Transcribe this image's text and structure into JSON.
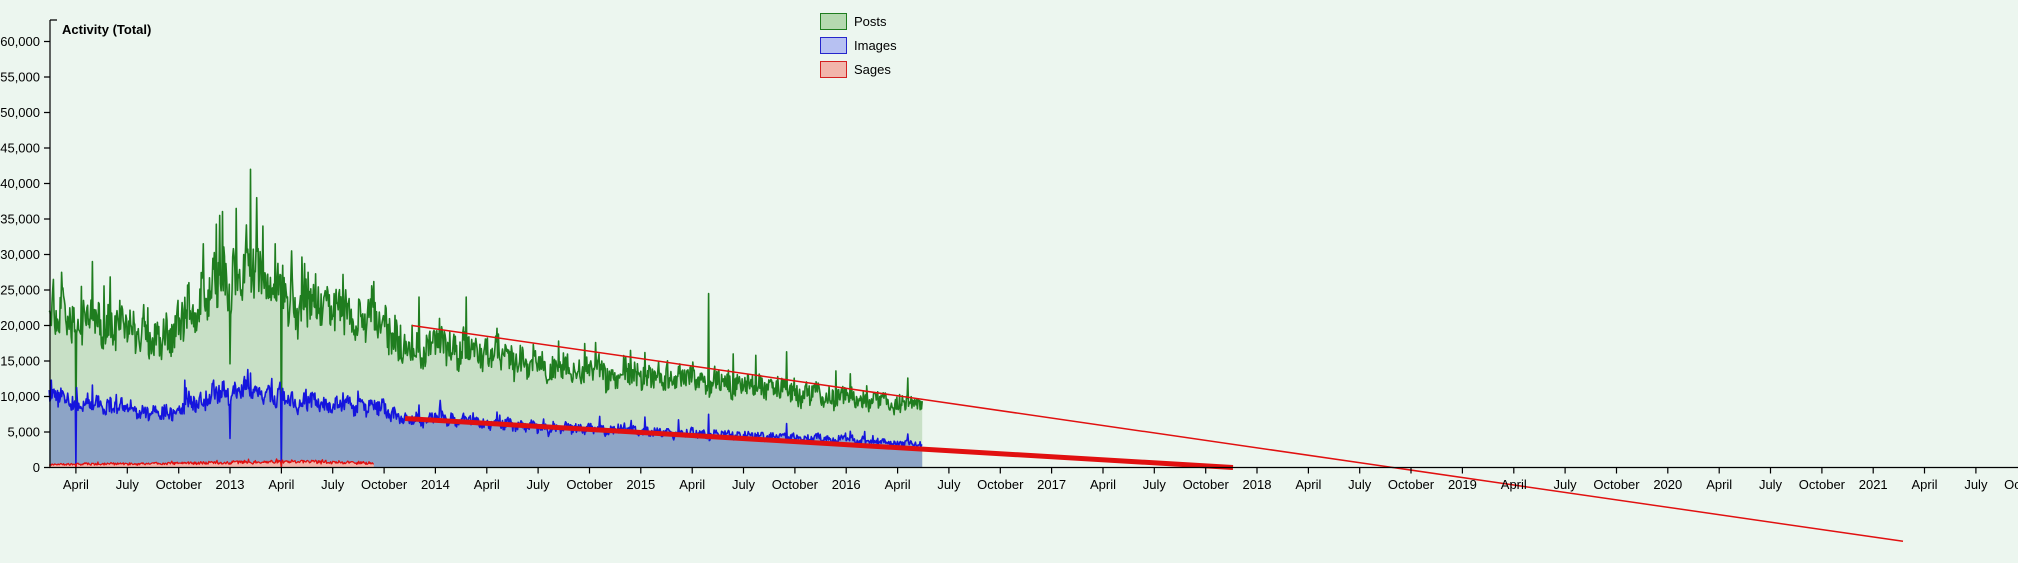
{
  "title": "Activity (Total)",
  "page_background": "#ecf6ef",
  "legend": [
    {
      "label": "Posts",
      "fill": "#b5d9b0",
      "border": "#1f7d1f"
    },
    {
      "label": "Images",
      "fill": "#b7c1f2",
      "border": "#2525cc"
    },
    {
      "label": "Sages",
      "fill": "#f2b5ab",
      "border": "#d42020"
    }
  ],
  "chart_data": {
    "type": "area",
    "title": "Activity (Total)",
    "xlabel": "",
    "ylabel": "",
    "grid": false,
    "legend_position": "top-center",
    "ylim": [
      0,
      60000
    ],
    "xlim_decimal_year": [
      2012.12,
      2021.83
    ],
    "axis_color": "#000000",
    "y_ticks": [
      {
        "v": 0,
        "label": "0"
      },
      {
        "v": 5000,
        "label": "5,000"
      },
      {
        "v": 10000,
        "label": "10,000"
      },
      {
        "v": 15000,
        "label": "15,000"
      },
      {
        "v": 20000,
        "label": "20,000"
      },
      {
        "v": 25000,
        "label": "25,000"
      },
      {
        "v": 30000,
        "label": "30,000"
      },
      {
        "v": 35000,
        "label": "35,000"
      },
      {
        "v": 40000,
        "label": "40,000"
      },
      {
        "v": 45000,
        "label": "45,000"
      },
      {
        "v": 50000,
        "label": "50,000"
      },
      {
        "v": 55000,
        "label": "55,000"
      },
      {
        "v": 60000,
        "label": "60,000"
      }
    ],
    "x_ticks": [
      {
        "t": 2012.25,
        "label": "April"
      },
      {
        "t": 2012.5,
        "label": "July"
      },
      {
        "t": 2012.75,
        "label": "October"
      },
      {
        "t": 2013.0,
        "label": "2013"
      },
      {
        "t": 2013.25,
        "label": "April"
      },
      {
        "t": 2013.5,
        "label": "July"
      },
      {
        "t": 2013.75,
        "label": "October"
      },
      {
        "t": 2014.0,
        "label": "2014"
      },
      {
        "t": 2014.25,
        "label": "April"
      },
      {
        "t": 2014.5,
        "label": "July"
      },
      {
        "t": 2014.75,
        "label": "October"
      },
      {
        "t": 2015.0,
        "label": "2015"
      },
      {
        "t": 2015.25,
        "label": "April"
      },
      {
        "t": 2015.5,
        "label": "July"
      },
      {
        "t": 2015.75,
        "label": "October"
      },
      {
        "t": 2016.0,
        "label": "2016"
      },
      {
        "t": 2016.25,
        "label": "April"
      },
      {
        "t": 2016.5,
        "label": "July"
      },
      {
        "t": 2016.75,
        "label": "October"
      },
      {
        "t": 2017.0,
        "label": "2017"
      },
      {
        "t": 2017.25,
        "label": "April"
      },
      {
        "t": 2017.5,
        "label": "July"
      },
      {
        "t": 2017.75,
        "label": "October"
      },
      {
        "t": 2018.0,
        "label": "2018"
      },
      {
        "t": 2018.25,
        "label": "April"
      },
      {
        "t": 2018.5,
        "label": "July"
      },
      {
        "t": 2018.75,
        "label": "October"
      },
      {
        "t": 2019.0,
        "label": "2019"
      },
      {
        "t": 2019.25,
        "label": "April"
      },
      {
        "t": 2019.5,
        "label": "July"
      },
      {
        "t": 2019.75,
        "label": "October"
      },
      {
        "t": 2020.0,
        "label": "2020"
      },
      {
        "t": 2020.25,
        "label": "April"
      },
      {
        "t": 2020.5,
        "label": "July"
      },
      {
        "t": 2020.75,
        "label": "October"
      },
      {
        "t": 2021.0,
        "label": "2021"
      },
      {
        "t": 2021.25,
        "label": "April"
      },
      {
        "t": 2021.5,
        "label": "July"
      },
      {
        "t": 2021.75,
        "label": "October"
      }
    ],
    "series": [
      {
        "name": "Posts",
        "line_color": "#1f7d1f",
        "fill_color": "#c8e0c6",
        "noise_rel": 0.14,
        "seed": 7,
        "range": [
          2012.12,
          2016.37
        ],
        "keypoints": [
          [
            2012.12,
            22000
          ],
          [
            2012.17,
            21000
          ],
          [
            2012.25,
            21000
          ],
          [
            2012.33,
            20800
          ],
          [
            2012.42,
            20300
          ],
          [
            2012.5,
            19600
          ],
          [
            2012.58,
            19000
          ],
          [
            2012.63,
            17200
          ],
          [
            2012.7,
            19000
          ],
          [
            2012.75,
            20000
          ],
          [
            2012.83,
            23000
          ],
          [
            2012.92,
            26000
          ],
          [
            2013.0,
            27000
          ],
          [
            2013.08,
            28000
          ],
          [
            2013.17,
            26500
          ],
          [
            2013.25,
            24000
          ],
          [
            2013.33,
            23200
          ],
          [
            2013.42,
            22800
          ],
          [
            2013.5,
            22300
          ],
          [
            2013.58,
            21800
          ],
          [
            2013.67,
            21300
          ],
          [
            2013.75,
            20500
          ],
          [
            2013.79,
            19500
          ],
          [
            2013.83,
            16500
          ],
          [
            2013.92,
            16800
          ],
          [
            2014.0,
            17300
          ],
          [
            2014.08,
            17000
          ],
          [
            2014.17,
            16500
          ],
          [
            2014.25,
            16000
          ],
          [
            2014.33,
            15500
          ],
          [
            2014.42,
            14800
          ],
          [
            2014.5,
            14200
          ],
          [
            2014.58,
            13700
          ],
          [
            2014.67,
            13900
          ],
          [
            2014.75,
            13600
          ],
          [
            2014.83,
            13200
          ],
          [
            2014.92,
            13400
          ],
          [
            2015.0,
            13100
          ],
          [
            2015.08,
            12700
          ],
          [
            2015.17,
            12500
          ],
          [
            2015.25,
            12500
          ],
          [
            2015.33,
            12400
          ],
          [
            2015.42,
            12000
          ],
          [
            2015.5,
            11600
          ],
          [
            2015.58,
            11300
          ],
          [
            2015.67,
            11100
          ],
          [
            2015.75,
            10700
          ],
          [
            2015.83,
            10300
          ],
          [
            2015.92,
            10100
          ],
          [
            2016.0,
            10100
          ],
          [
            2016.08,
            9600
          ],
          [
            2016.17,
            9200
          ],
          [
            2016.25,
            9100
          ],
          [
            2016.37,
            8600
          ]
        ],
        "spikes": [
          [
            2012.14,
            26500
          ],
          [
            2012.18,
            27500
          ],
          [
            2012.33,
            29000
          ],
          [
            2012.6,
            22500
          ],
          [
            2012.87,
            31500
          ],
          [
            2012.95,
            35500
          ],
          [
            2013.03,
            36500
          ],
          [
            2013.1,
            42000
          ],
          [
            2013.13,
            38000
          ],
          [
            2013.16,
            34000
          ],
          [
            2013.22,
            31500
          ],
          [
            2013.3,
            30500
          ],
          [
            2013.38,
            27500
          ],
          [
            2013.55,
            27200
          ],
          [
            2013.7,
            26200
          ],
          [
            2013.92,
            24000
          ],
          [
            2014.02,
            21000
          ],
          [
            2014.3,
            19600
          ],
          [
            2014.6,
            17800
          ],
          [
            2014.78,
            17600
          ],
          [
            2014.95,
            16500
          ],
          [
            2015.02,
            16200
          ],
          [
            2015.33,
            24500
          ],
          [
            2015.45,
            16000
          ],
          [
            2015.56,
            15800
          ],
          [
            2015.71,
            16300
          ],
          [
            2015.95,
            13600
          ],
          [
            2016.02,
            13200
          ],
          [
            2016.3,
            12600
          ]
        ],
        "dips": [
          [
            2012.249,
            4800
          ],
          [
            2012.63,
            15800
          ],
          [
            2013.0,
            14600
          ],
          [
            2013.249,
            200
          ],
          [
            2013.84,
            14700
          ]
        ]
      },
      {
        "name": "Images",
        "line_color": "#1515dd",
        "fill_color": "#8da4c6",
        "noise_rel": 0.12,
        "seed": 13,
        "range": [
          2012.12,
          2016.37
        ],
        "keypoints": [
          [
            2012.12,
            10300
          ],
          [
            2012.25,
            9200
          ],
          [
            2012.33,
            9000
          ],
          [
            2012.42,
            8800
          ],
          [
            2012.5,
            8400
          ],
          [
            2012.58,
            8000
          ],
          [
            2012.63,
            7400
          ],
          [
            2012.7,
            7900
          ],
          [
            2012.75,
            8400
          ],
          [
            2012.83,
            9300
          ],
          [
            2012.92,
            10200
          ],
          [
            2013.0,
            10700
          ],
          [
            2013.08,
            11000
          ],
          [
            2013.17,
            10400
          ],
          [
            2013.25,
            9500
          ],
          [
            2013.33,
            9300
          ],
          [
            2013.42,
            9100
          ],
          [
            2013.5,
            8900
          ],
          [
            2013.58,
            8700
          ],
          [
            2013.67,
            8600
          ],
          [
            2013.75,
            8300
          ],
          [
            2013.79,
            7800
          ],
          [
            2013.83,
            6700
          ],
          [
            2013.92,
            6800
          ],
          [
            2014.0,
            7000
          ],
          [
            2014.08,
            6800
          ],
          [
            2014.17,
            6600
          ],
          [
            2014.25,
            6300
          ],
          [
            2014.33,
            6100
          ],
          [
            2014.42,
            5900
          ],
          [
            2014.5,
            5600
          ],
          [
            2014.58,
            5400
          ],
          [
            2014.67,
            5500
          ],
          [
            2014.75,
            5400
          ],
          [
            2014.83,
            5200
          ],
          [
            2014.92,
            5300
          ],
          [
            2015.0,
            5100
          ],
          [
            2015.08,
            4900
          ],
          [
            2015.17,
            4800
          ],
          [
            2015.25,
            4800
          ],
          [
            2015.33,
            4700
          ],
          [
            2015.42,
            4600
          ],
          [
            2015.5,
            4500
          ],
          [
            2015.58,
            4400
          ],
          [
            2015.67,
            4300
          ],
          [
            2015.75,
            4200
          ],
          [
            2015.83,
            4100
          ],
          [
            2015.92,
            4100
          ],
          [
            2016.0,
            4000
          ],
          [
            2016.08,
            3800
          ],
          [
            2016.17,
            3600
          ],
          [
            2016.25,
            3500
          ],
          [
            2016.37,
            3100
          ]
        ],
        "spikes": [
          [
            2012.13,
            12300
          ],
          [
            2012.33,
            11600
          ],
          [
            2012.78,
            12300
          ],
          [
            2012.92,
            12300
          ],
          [
            2013.07,
            12800
          ],
          [
            2013.1,
            13300
          ],
          [
            2013.37,
            11000
          ],
          [
            2013.55,
            10500
          ],
          [
            2013.92,
            8800
          ],
          [
            2014.3,
            7800
          ],
          [
            2014.8,
            7200
          ],
          [
            2015.02,
            7100
          ],
          [
            2015.33,
            7500
          ],
          [
            2015.71,
            6200
          ],
          [
            2016.02,
            5100
          ],
          [
            2016.3,
            4700
          ]
        ],
        "dips": [
          [
            2012.249,
            60
          ],
          [
            2013.0,
            4100
          ],
          [
            2013.249,
            60
          ]
        ]
      },
      {
        "name": "Sages",
        "line_color": "#e11010",
        "fill_color": "#f2b5ab",
        "noise_rel": 0.3,
        "seed": 21,
        "range": [
          2012.12,
          2013.7
        ],
        "keypoints": [
          [
            2012.12,
            420
          ],
          [
            2012.25,
            480
          ],
          [
            2012.42,
            540
          ],
          [
            2012.58,
            500
          ],
          [
            2012.75,
            580
          ],
          [
            2012.92,
            680
          ],
          [
            2013.08,
            760
          ],
          [
            2013.25,
            800
          ],
          [
            2013.42,
            820
          ],
          [
            2013.5,
            760
          ],
          [
            2013.58,
            700
          ],
          [
            2013.7,
            620
          ]
        ],
        "spikes": [
          [
            2013.3,
            1050
          ],
          [
            2013.45,
            1100
          ]
        ],
        "dips": [
          [
            2012.249,
            40
          ],
          [
            2013.249,
            40
          ]
        ]
      }
    ],
    "trend_lines": [
      {
        "name": "posts-trend",
        "color": "#e11010",
        "width": 1.5,
        "from": [
          2013.886,
          20000
        ],
        "to": [
          2021.145,
          -10400
        ]
      },
      {
        "name": "images-trend",
        "color": "#e11010",
        "width": 5,
        "from": [
          2013.852,
          6900
        ],
        "to": [
          2017.883,
          0
        ]
      }
    ]
  }
}
